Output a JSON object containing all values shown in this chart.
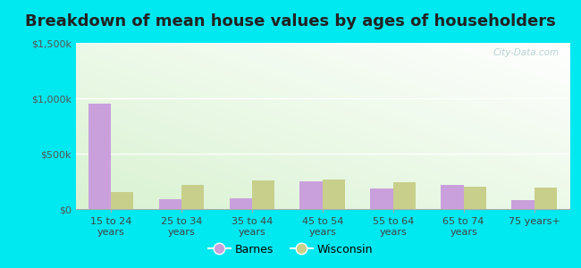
{
  "title": "Breakdown of mean house values by ages of householders",
  "categories": [
    "15 to 24\nyears",
    "25 to 34\nyears",
    "35 to 44\nyears",
    "45 to 54\nyears",
    "55 to 64\nyears",
    "65 to 74\nyears",
    "75 years+"
  ],
  "barnes_values": [
    950000,
    85000,
    100000,
    250000,
    185000,
    220000,
    80000
  ],
  "wisconsin_values": [
    150000,
    215000,
    260000,
    265000,
    240000,
    205000,
    195000
  ],
  "barnes_color": "#c9a0dc",
  "wisconsin_color": "#c8cf8a",
  "ylim": [
    0,
    1500000
  ],
  "yticks": [
    0,
    500000,
    1000000,
    1500000
  ],
  "ytick_labels": [
    "$0",
    "$500k",
    "$1,000k",
    "$1,500k"
  ],
  "legend_labels": [
    "Barnes",
    "Wisconsin"
  ],
  "background_outer": "#00e8f0",
  "watermark": "City-Data.com",
  "bar_width": 0.32,
  "title_fontsize": 13
}
